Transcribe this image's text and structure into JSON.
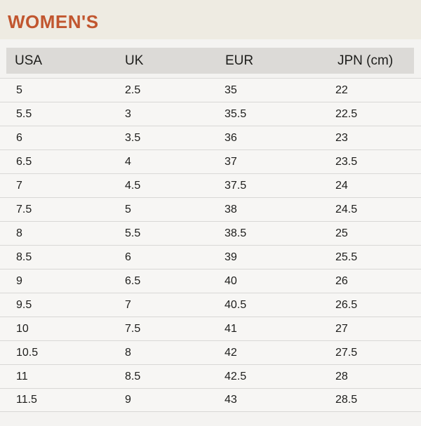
{
  "title": "WOMEN'S",
  "colors": {
    "accent": "#c1562f",
    "band_bg": "#eeebe2",
    "page_bg": "#f4f3f1",
    "header_bg": "#dcdad7",
    "row_bg": "#f7f6f4",
    "separator": "#d9d8d6",
    "text": "#1d1d1b"
  },
  "table": {
    "columns": [
      "USA",
      "UK",
      "EUR",
      "JPN (cm)"
    ],
    "rows": [
      [
        "5",
        "2.5",
        "35",
        "22"
      ],
      [
        "5.5",
        "3",
        "35.5",
        "22.5"
      ],
      [
        "6",
        "3.5",
        "36",
        "23"
      ],
      [
        "6.5",
        "4",
        "37",
        "23.5"
      ],
      [
        "7",
        "4.5",
        "37.5",
        "24"
      ],
      [
        "7.5",
        "5",
        "38",
        "24.5"
      ],
      [
        "8",
        "5.5",
        "38.5",
        "25"
      ],
      [
        "8.5",
        "6",
        "39",
        "25.5"
      ],
      [
        "9",
        "6.5",
        "40",
        "26"
      ],
      [
        "9.5",
        "7",
        "40.5",
        "26.5"
      ],
      [
        "10",
        "7.5",
        "41",
        "27"
      ],
      [
        "10.5",
        "8",
        "42",
        "27.5"
      ],
      [
        "11",
        "8.5",
        "42.5",
        "28"
      ],
      [
        "11.5",
        "9",
        "43",
        "28.5"
      ]
    ]
  }
}
